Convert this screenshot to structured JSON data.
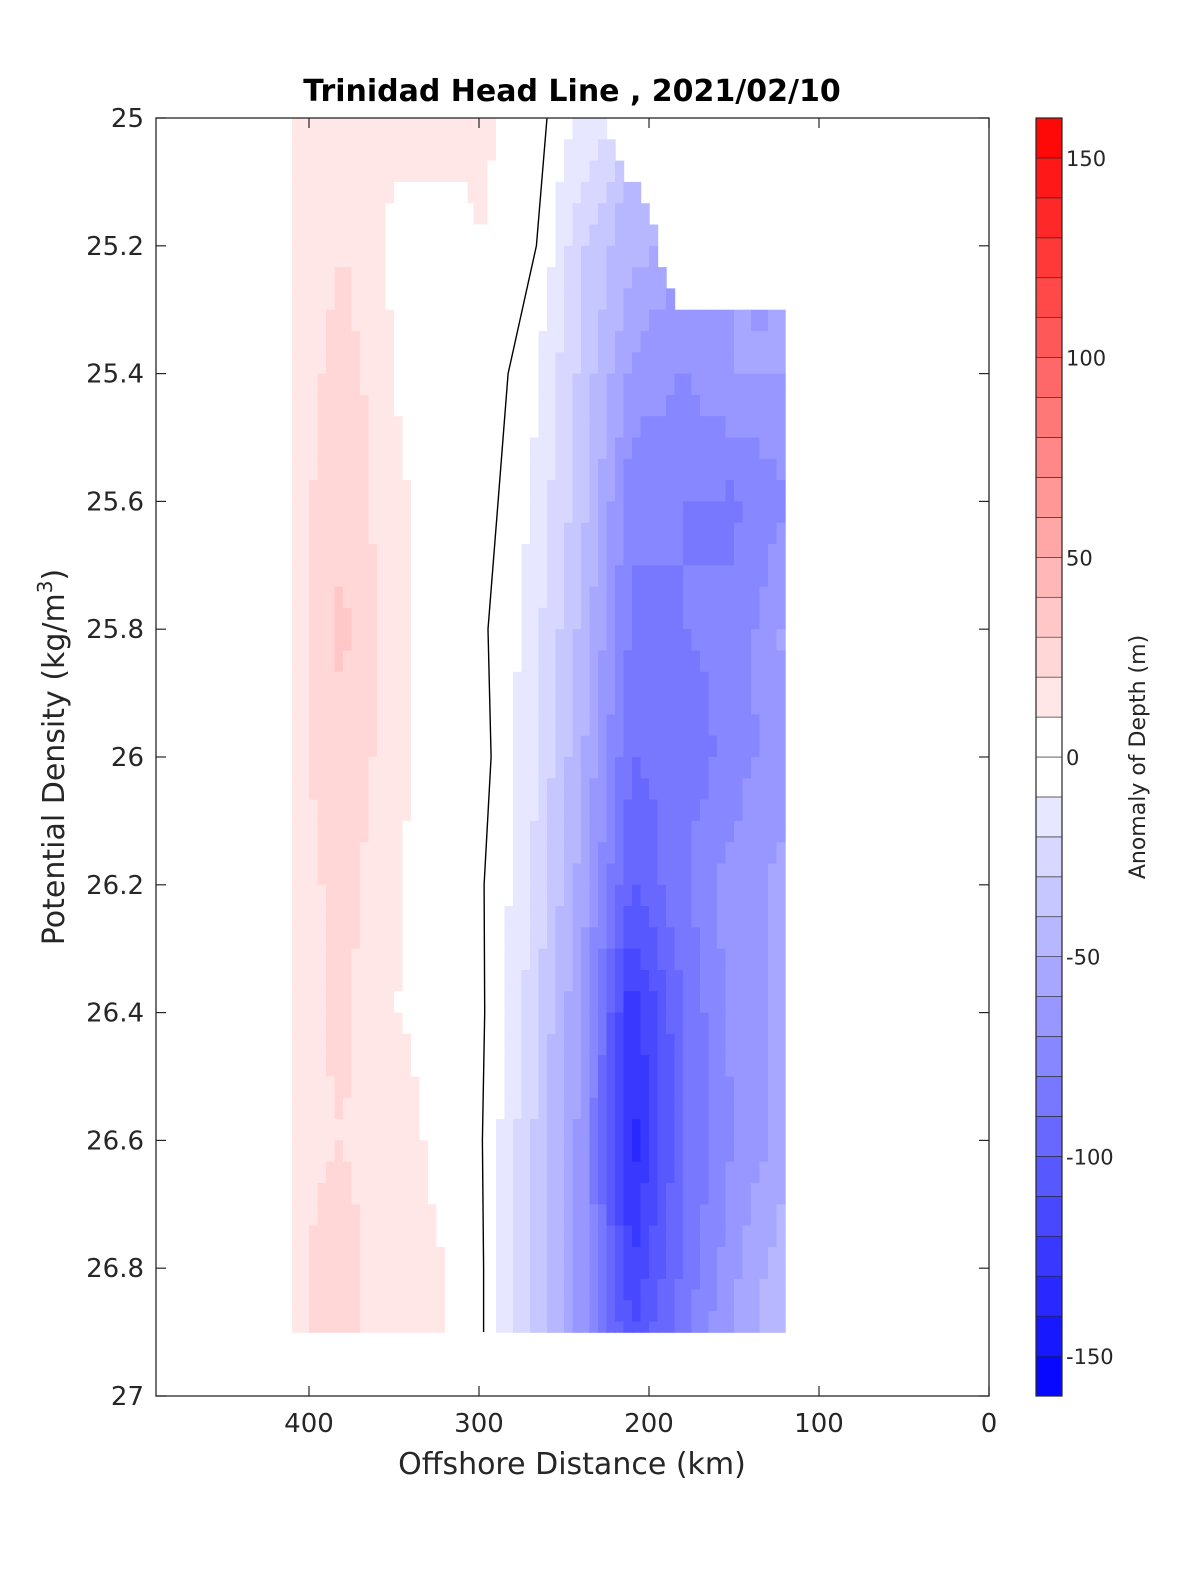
{
  "chart_data": {
    "type": "heatmap",
    "subtype": "filled-contour",
    "title": "Trinidad Head Line , 2021/02/10",
    "xlabel": "Offshore Distance (km)",
    "ylabel": "Potential Density (kg/m",
    "ylabel_superscript": "3",
    "ylabel_close": ")",
    "xlim": [
      490,
      0
    ],
    "x_reversed": true,
    "ylim": [
      25,
      27
    ],
    "y_reversed": true,
    "x_ticks": [
      400,
      300,
      200,
      100,
      0
    ],
    "x_tick_labels": [
      "400",
      "300",
      "200",
      "100",
      "0"
    ],
    "y_ticks": [
      25,
      25.2,
      25.4,
      25.6,
      25.8,
      26,
      26.2,
      26.4,
      26.6,
      26.8,
      27
    ],
    "y_tick_labels": [
      "25",
      "25.2",
      "25.4",
      "25.6",
      "25.8",
      "26",
      "26.2",
      "26.4",
      "26.6",
      "26.8",
      "27"
    ],
    "colorbar": {
      "label": "Anomaly of Depth (m)",
      "range": [
        -160,
        160
      ],
      "level_step": 10,
      "ticks": [
        150,
        100,
        50,
        0,
        -50,
        -100,
        -150
      ],
      "tick_labels": [
        "150",
        "100",
        "50",
        "0",
        "-50",
        "-100",
        "-150"
      ],
      "high_color": "#ff0000",
      "low_color": "#0000ff",
      "zero_color": "#ffffff"
    },
    "zero_contour_color": "#000000",
    "x": [
      410,
      380,
      350,
      320,
      300,
      270,
      240,
      210,
      180,
      150,
      120
    ],
    "y": [
      25.0,
      25.2,
      25.4,
      25.6,
      25.8,
      26.0,
      26.2,
      26.4,
      26.6,
      26.8,
      26.9
    ],
    "z": [
      [
        16,
        20,
        12,
        18,
        12,
        6,
        -12,
        null,
        null,
        null,
        null
      ],
      [
        12,
        20,
        8,
        2,
        10,
        4,
        -28,
        -48,
        null,
        null,
        null
      ],
      [
        12,
        26,
        10,
        3,
        8,
        -6,
        -32,
        -62,
        -70,
        -60,
        -60
      ],
      [
        14,
        30,
        12,
        5,
        6,
        -10,
        -36,
        -78,
        -80,
        -82,
        -72
      ],
      [
        15,
        32,
        13,
        3,
        3,
        -14,
        -42,
        -82,
        -80,
        -78,
        -58
      ],
      [
        14,
        30,
        13,
        2,
        5,
        -16,
        -48,
        -90,
        -86,
        -76,
        -62
      ],
      [
        14,
        24,
        12,
        3,
        2,
        -18,
        -54,
        -100,
        -82,
        -64,
        -58
      ],
      [
        16,
        22,
        10,
        8,
        3,
        -24,
        -60,
        -128,
        -90,
        -66,
        -56
      ],
      [
        18,
        20,
        14,
        7,
        2,
        -28,
        -64,
        -135,
        -92,
        -70,
        -56
      ],
      [
        18,
        24,
        14,
        10,
        3,
        -30,
        -64,
        -120,
        -88,
        -62,
        -42
      ],
      [
        18,
        24,
        14,
        10,
        3,
        -30,
        -64,
        -110,
        -84,
        -58,
        -40
      ]
    ]
  }
}
